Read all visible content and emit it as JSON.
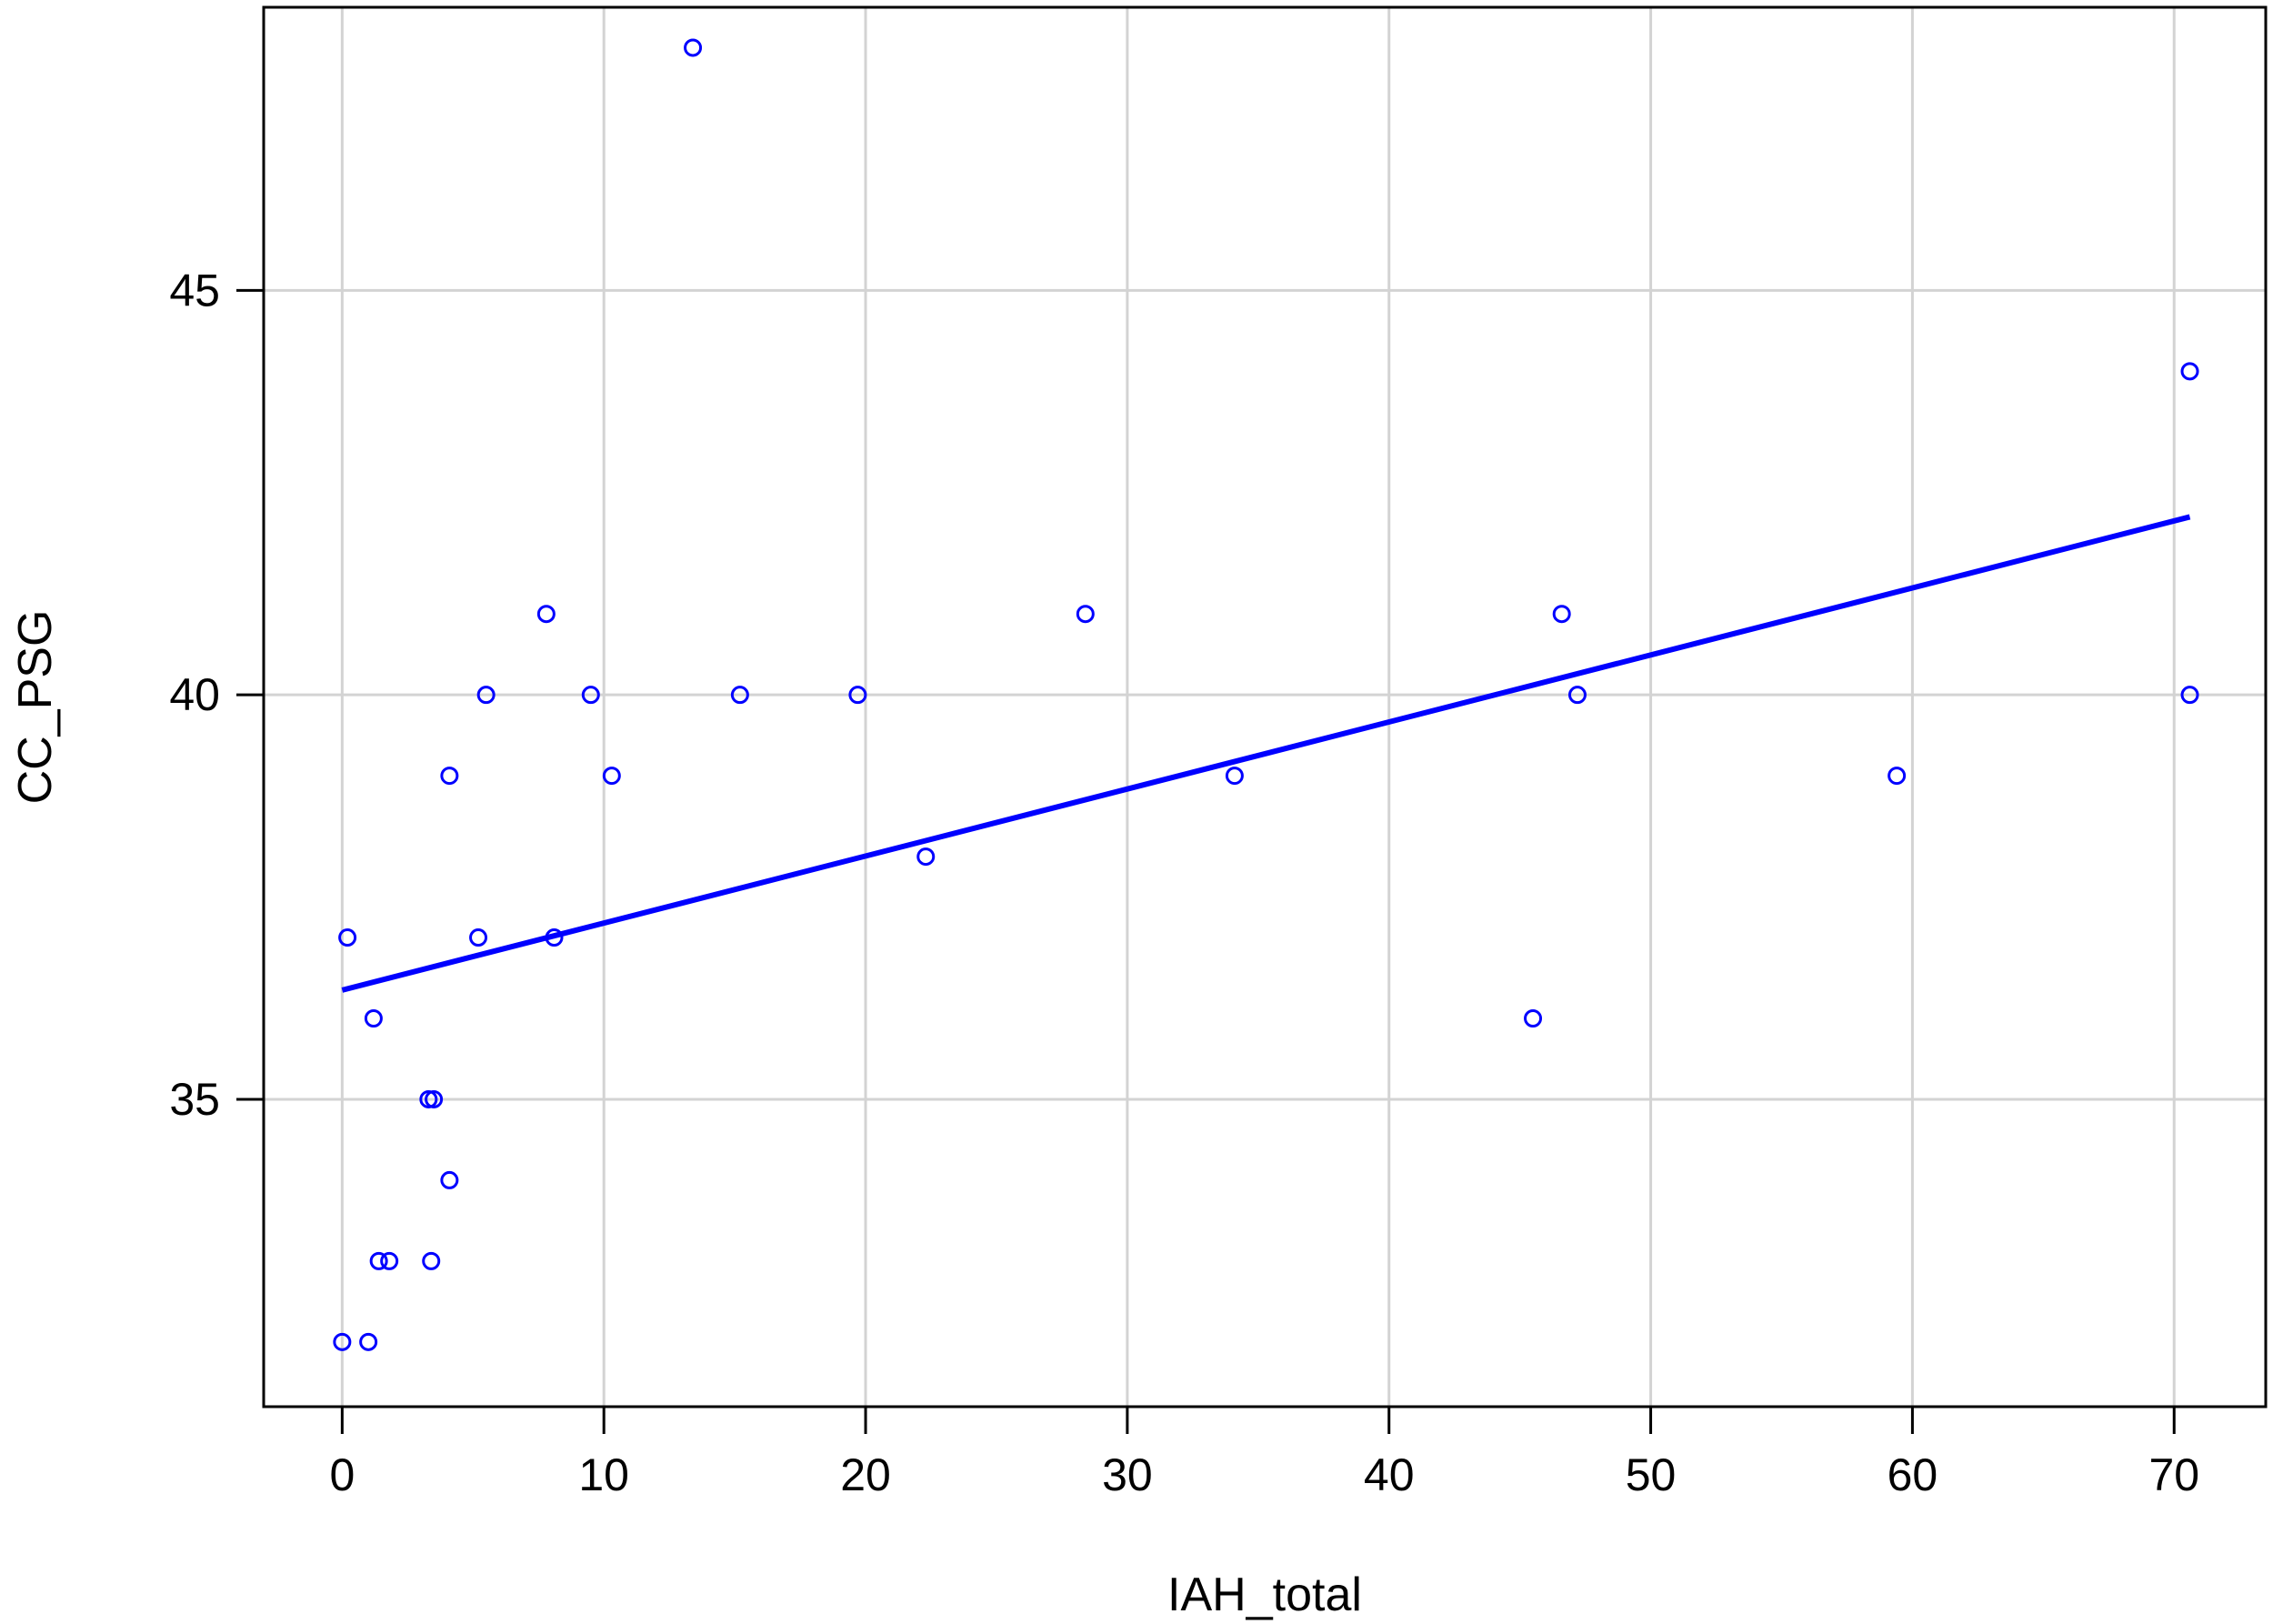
{
  "chart_data": {
    "type": "scatter",
    "title": "",
    "xlabel": "IAH_total",
    "ylabel": "CC_PSG",
    "xlim": [
      -3,
      73.5
    ],
    "ylim": [
      31.2,
      48.5
    ],
    "xticks": [
      0,
      10,
      20,
      30,
      40,
      50,
      60,
      70
    ],
    "yticks": [
      35,
      40,
      45
    ],
    "grid": true,
    "colors": {
      "points": "#0000ff",
      "fit_line": "#0000ff",
      "grid": "#d3d3d3",
      "axes": "#000000"
    },
    "series": [
      {
        "points": [
          {
            "x": 13.4,
            "y": 48.0
          },
          {
            "x": 70.6,
            "y": 44.0
          },
          {
            "x": 7.8,
            "y": 41.0
          },
          {
            "x": 28.4,
            "y": 41.0
          },
          {
            "x": 46.6,
            "y": 41.0
          },
          {
            "x": 5.5,
            "y": 40.0
          },
          {
            "x": 9.5,
            "y": 40.0
          },
          {
            "x": 15.2,
            "y": 40.0
          },
          {
            "x": 19.7,
            "y": 40.0
          },
          {
            "x": 47.2,
            "y": 40.0
          },
          {
            "x": 70.6,
            "y": 40.0
          },
          {
            "x": 4.1,
            "y": 39.0
          },
          {
            "x": 10.3,
            "y": 39.0
          },
          {
            "x": 34.1,
            "y": 39.0
          },
          {
            "x": 59.4,
            "y": 39.0
          },
          {
            "x": 22.3,
            "y": 38.0
          },
          {
            "x": 0.2,
            "y": 37.0
          },
          {
            "x": 5.2,
            "y": 37.0
          },
          {
            "x": 8.1,
            "y": 37.0
          },
          {
            "x": 1.2,
            "y": 36.0
          },
          {
            "x": 45.5,
            "y": 36.0
          },
          {
            "x": 3.3,
            "y": 35.0
          },
          {
            "x": 3.5,
            "y": 35.0
          },
          {
            "x": 4.1,
            "y": 34.0
          },
          {
            "x": 1.4,
            "y": 33.0
          },
          {
            "x": 1.8,
            "y": 33.0
          },
          {
            "x": 3.4,
            "y": 33.0
          },
          {
            "x": 0.0,
            "y": 32.0
          },
          {
            "x": 1.0,
            "y": 32.0
          }
        ]
      }
    ],
    "fit_line": {
      "x1": 0.0,
      "y1": 36.35,
      "x2": 70.6,
      "y2": 42.2
    }
  }
}
